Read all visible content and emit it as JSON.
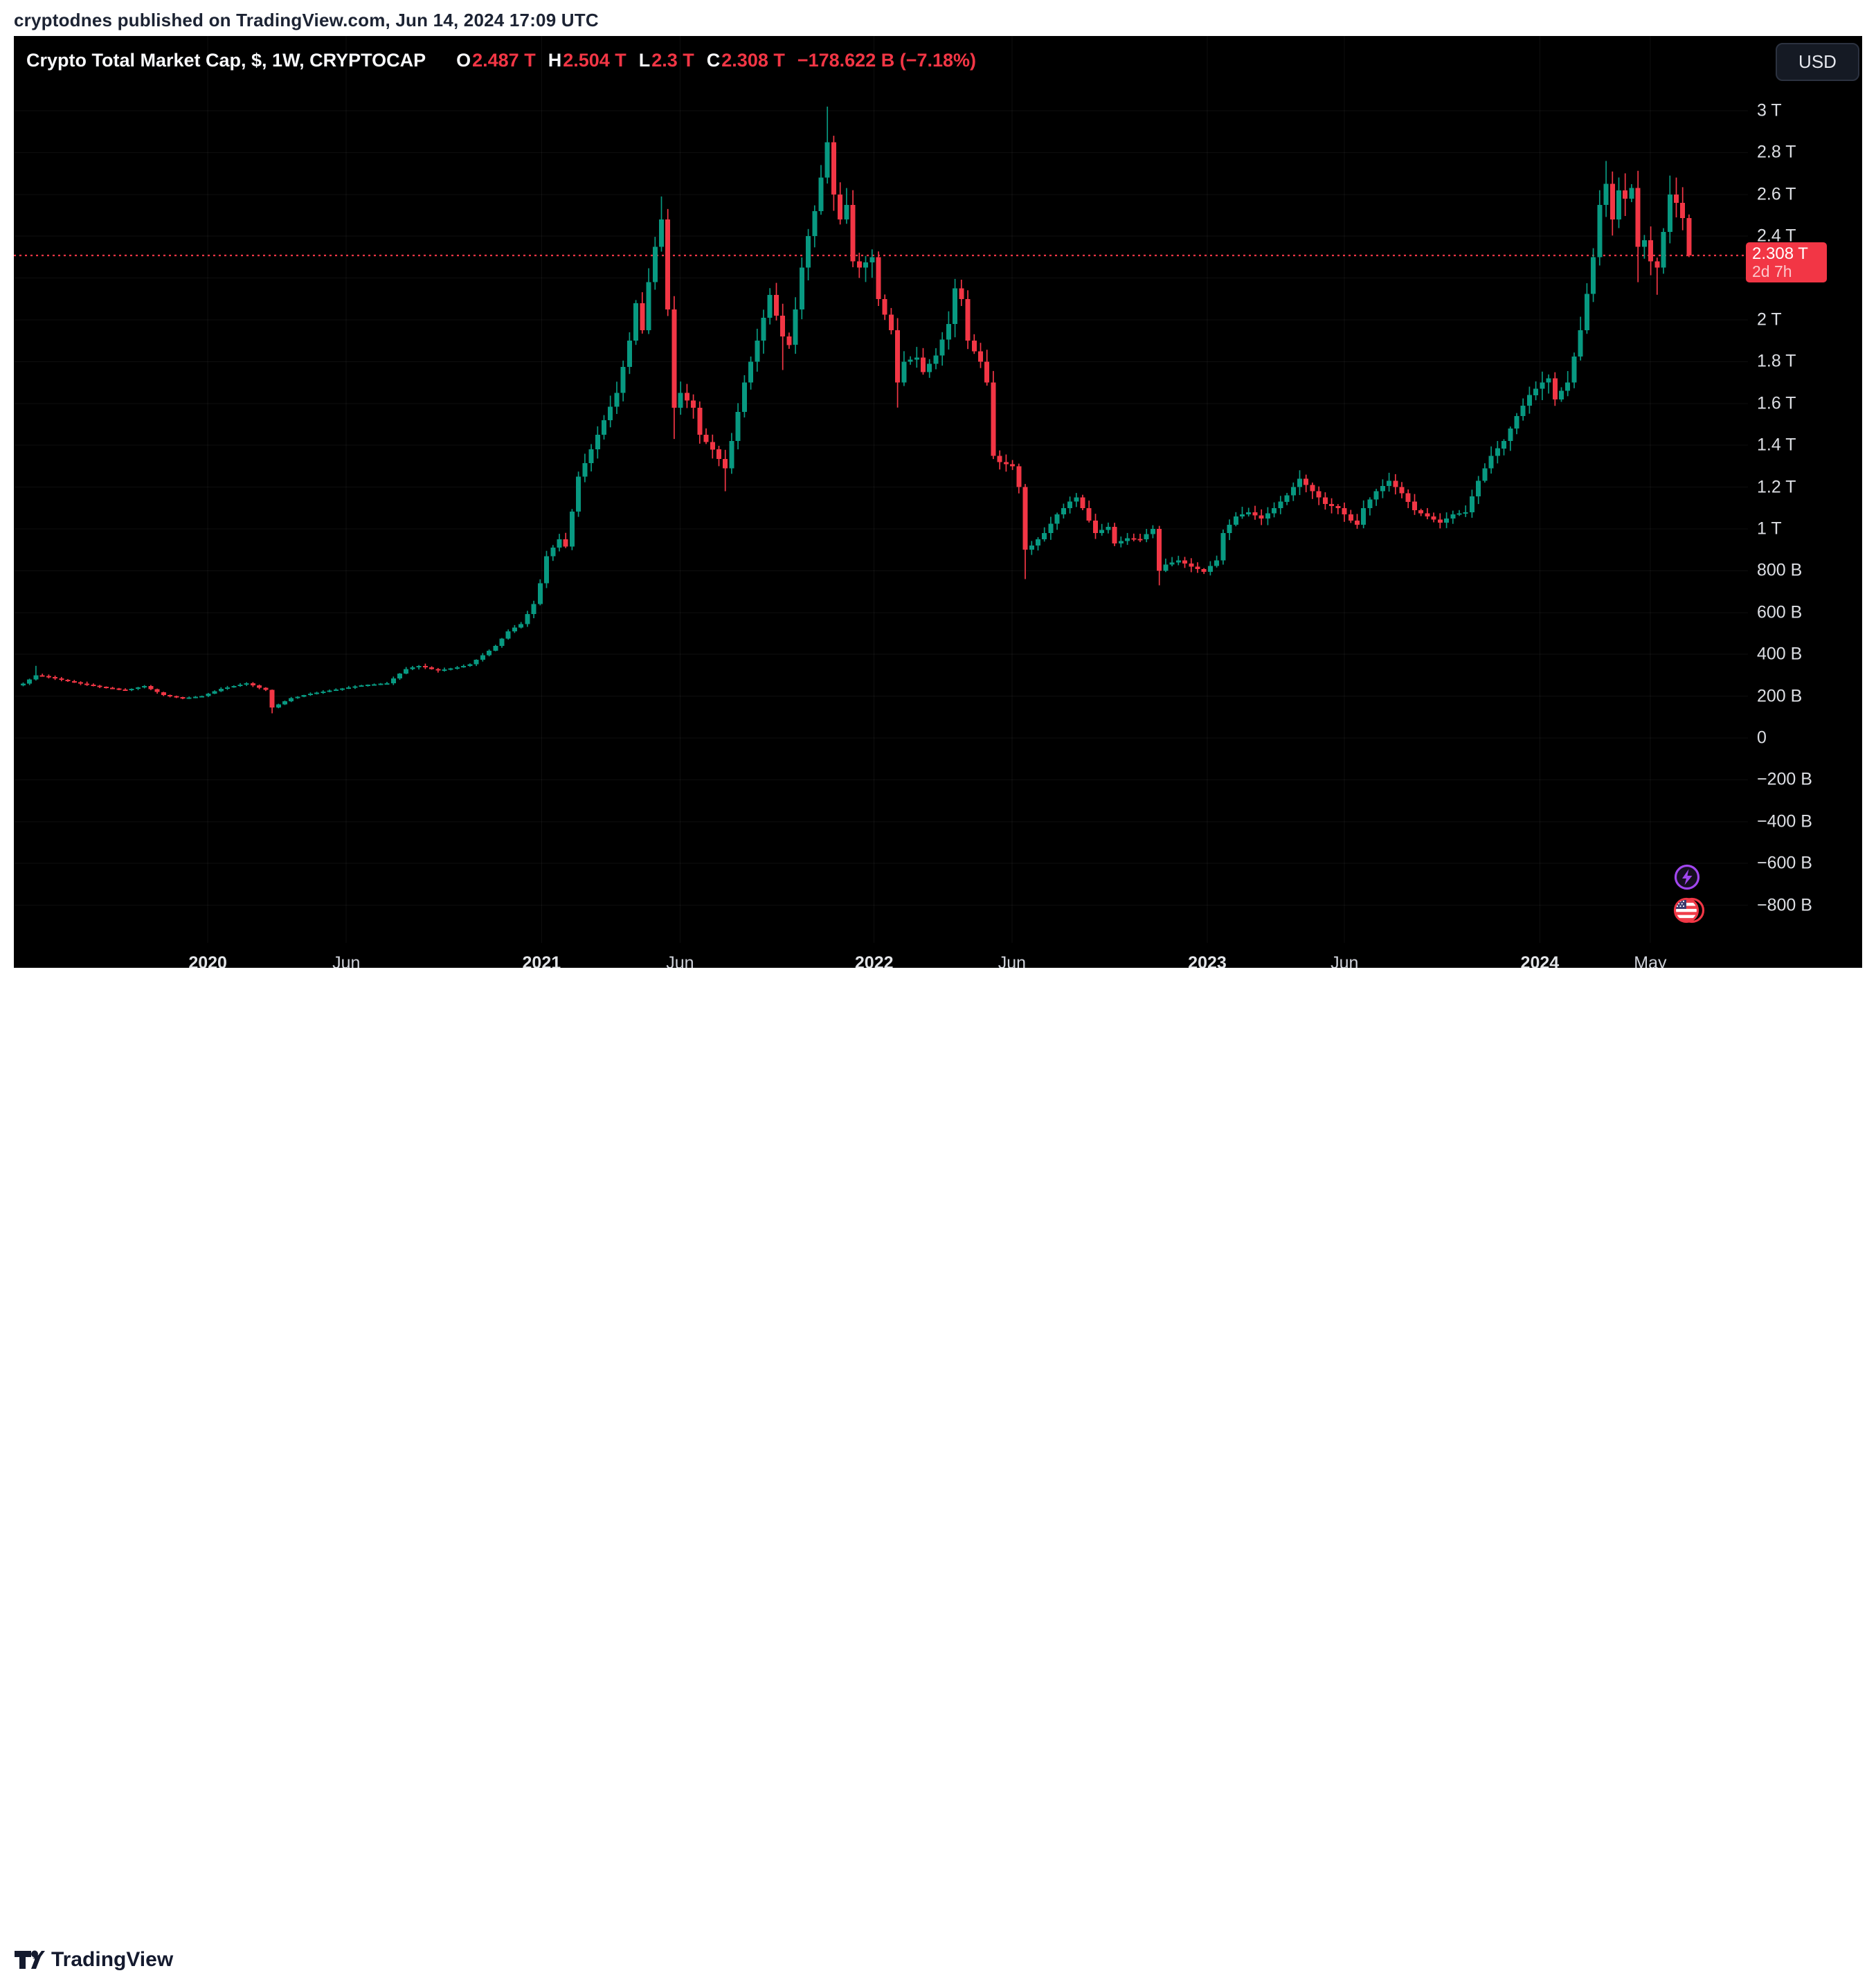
{
  "header": {
    "publisher_line": "cryptodnes published on TradingView.com, Jun 14, 2024 17:09 UTC"
  },
  "toolbar": {
    "currency_button": "USD"
  },
  "legend": {
    "title": "Crypto Total Market Cap, $, 1W, CRYPTOCAP",
    "items": [
      {
        "k": "O",
        "v": "2.487 T"
      },
      {
        "k": "H",
        "v": "2.504 T"
      },
      {
        "k": "L",
        "v": "2.3 T"
      },
      {
        "k": "C",
        "v": "2.308 T"
      }
    ],
    "change": "−178.622 B (−7.18%)"
  },
  "price_label": {
    "price": "2.308 T",
    "countdown": "2d 7h"
  },
  "footer": {
    "brand": "TradingView"
  },
  "chart_data": {
    "type": "candlestick",
    "title": "Crypto Total Market Cap, $",
    "symbol": "CRYPTOCAP",
    "timeframe": "1W",
    "currency": "USD",
    "last_ohlc_billions": {
      "open": 2487,
      "high": 2504,
      "low": 2300,
      "close": 2308,
      "change": "−178.622 B",
      "change_pct": "−7.18%"
    },
    "price_line_billions": 2308,
    "colors": {
      "up": "#089981",
      "down": "#f23645",
      "price_line": "#f23645",
      "grid": "rgba(255,255,255,0.055)",
      "background": "#000000"
    },
    "y_axis": {
      "unit_note": "values in billions USD",
      "min": -900,
      "max": 3100,
      "grid_step": 200,
      "ticks": [
        {
          "label": "3 T",
          "value": 3000
        },
        {
          "label": "2.8 T",
          "value": 2800
        },
        {
          "label": "2.6 T",
          "value": 2600
        },
        {
          "label": "2.4 T",
          "value": 2400
        },
        {
          "label": "2 T",
          "value": 2000
        },
        {
          "label": "1.8 T",
          "value": 1800
        },
        {
          "label": "1.6 T",
          "value": 1600
        },
        {
          "label": "1.4 T",
          "value": 1400
        },
        {
          "label": "1.2 T",
          "value": 1200
        },
        {
          "label": "1 T",
          "value": 1000
        },
        {
          "label": "800 B",
          "value": 800
        },
        {
          "label": "600 B",
          "value": 600
        },
        {
          "label": "400 B",
          "value": 400
        },
        {
          "label": "200 B",
          "value": 200
        },
        {
          "label": "0",
          "value": 0
        },
        {
          "label": "−200 B",
          "value": -200
        },
        {
          "label": "−400 B",
          "value": -400
        },
        {
          "label": "−600 B",
          "value": -600
        },
        {
          "label": "−800 B",
          "value": -800
        }
      ]
    },
    "x_axis": {
      "start_week_date": "2019-06-10",
      "weeks": 261,
      "ticks": [
        {
          "label": "2020",
          "week": 29.3,
          "bold": true
        },
        {
          "label": "Jun",
          "week": 51.0,
          "bold": false
        },
        {
          "label": "2021",
          "week": 81.6,
          "bold": true
        },
        {
          "label": "Jun",
          "week": 103.3,
          "bold": false
        },
        {
          "label": "2022",
          "week": 133.7,
          "bold": true
        },
        {
          "label": "Jun",
          "week": 155.3,
          "bold": false
        },
        {
          "label": "2023",
          "week": 185.9,
          "bold": true
        },
        {
          "label": "Jun",
          "week": 207.4,
          "bold": false
        },
        {
          "label": "2024",
          "week": 238.0,
          "bold": true
        },
        {
          "label": "May",
          "week": 255.3,
          "bold": false
        }
      ]
    },
    "anchors_weekly_close_billions_format": "[week_index, close, high_override|null, low_override|null, open_override?]",
    "anchors": [
      [
        0,
        260,
        null,
        null
      ],
      [
        2,
        300,
        345,
        null
      ],
      [
        4,
        292,
        null,
        null
      ],
      [
        7,
        272,
        null,
        null
      ],
      [
        10,
        255,
        null,
        null
      ],
      [
        13,
        240,
        null,
        null
      ],
      [
        16,
        228,
        null,
        null
      ],
      [
        19,
        248,
        null,
        null
      ],
      [
        22,
        205,
        null,
        null
      ],
      [
        25,
        190,
        null,
        null
      ],
      [
        28,
        200,
        null,
        null
      ],
      [
        31,
        235,
        null,
        null
      ],
      [
        35,
        262,
        null,
        null
      ],
      [
        38,
        230,
        null,
        null
      ],
      [
        39,
        145,
        null,
        118
      ],
      [
        40,
        160,
        null,
        null
      ],
      [
        42,
        190,
        null,
        null
      ],
      [
        45,
        212,
        null,
        null
      ],
      [
        49,
        232,
        null,
        null
      ],
      [
        53,
        252,
        null,
        null
      ],
      [
        57,
        262,
        null,
        null
      ],
      [
        60,
        330,
        null,
        null
      ],
      [
        62,
        345,
        null,
        null
      ],
      [
        65,
        322,
        null,
        null
      ],
      [
        68,
        338,
        null,
        null
      ],
      [
        70,
        352,
        null,
        null
      ],
      [
        72,
        395,
        null,
        null
      ],
      [
        74,
        440,
        null,
        null
      ],
      [
        76,
        510,
        null,
        null
      ],
      [
        78,
        545,
        null,
        null
      ],
      [
        80,
        640,
        null,
        null
      ],
      [
        81,
        740,
        null,
        null
      ],
      [
        82,
        870,
        null,
        null
      ],
      [
        84,
        950,
        null,
        null
      ],
      [
        85,
        915,
        null,
        null
      ],
      [
        87,
        1250,
        null,
        null
      ],
      [
        89,
        1380,
        null,
        null
      ],
      [
        91,
        1520,
        null,
        null
      ],
      [
        93,
        1650,
        null,
        null
      ],
      [
        95,
        1900,
        null,
        null
      ],
      [
        96,
        2080,
        null,
        null
      ],
      [
        97,
        1950,
        null,
        null
      ],
      [
        98,
        2180,
        null,
        null
      ],
      [
        99,
        2350,
        null,
        null
      ],
      [
        100,
        2480,
        2590,
        null
      ],
      [
        101,
        2050,
        null,
        null
      ],
      [
        102,
        1580,
        null,
        1430
      ],
      [
        103,
        1650,
        null,
        null
      ],
      [
        105,
        1580,
        null,
        null
      ],
      [
        106,
        1450,
        null,
        null
      ],
      [
        108,
        1380,
        null,
        null
      ],
      [
        110,
        1290,
        null,
        1180
      ],
      [
        111,
        1420,
        null,
        null
      ],
      [
        113,
        1700,
        null,
        null
      ],
      [
        115,
        1900,
        null,
        null
      ],
      [
        117,
        2120,
        null,
        null
      ],
      [
        118,
        2020,
        null,
        null
      ],
      [
        119,
        1920,
        null,
        1760
      ],
      [
        120,
        1880,
        null,
        null
      ],
      [
        121,
        2050,
        null,
        null
      ],
      [
        122,
        2250,
        null,
        null
      ],
      [
        123,
        2400,
        null,
        null
      ],
      [
        124,
        2520,
        null,
        null
      ],
      [
        125,
        2680,
        null,
        null
      ],
      [
        126,
        2850,
        3020,
        null
      ],
      [
        127,
        2600,
        null,
        null
      ],
      [
        128,
        2480,
        null,
        null
      ],
      [
        129,
        2550,
        null,
        null
      ],
      [
        130,
        2280,
        null,
        null
      ],
      [
        131,
        2250,
        null,
        null
      ],
      [
        133,
        2300,
        null,
        null
      ],
      [
        134,
        2100,
        null,
        null
      ],
      [
        136,
        1950,
        null,
        null
      ],
      [
        137,
        1700,
        null,
        1580
      ],
      [
        138,
        1800,
        null,
        null
      ],
      [
        140,
        1820,
        null,
        null
      ],
      [
        141,
        1750,
        null,
        null
      ],
      [
        143,
        1830,
        null,
        null
      ],
      [
        145,
        1980,
        null,
        null
      ],
      [
        146,
        2150,
        null,
        null
      ],
      [
        147,
        2100,
        null,
        null
      ],
      [
        148,
        1900,
        null,
        null
      ],
      [
        150,
        1800,
        null,
        null
      ],
      [
        151,
        1700,
        null,
        null
      ],
      [
        152,
        1350,
        null,
        null
      ],
      [
        153,
        1320,
        null,
        null
      ],
      [
        155,
        1300,
        null,
        null
      ],
      [
        156,
        1200,
        null,
        null
      ],
      [
        157,
        900,
        null,
        760
      ],
      [
        158,
        920,
        null,
        null
      ],
      [
        160,
        980,
        null,
        null
      ],
      [
        162,
        1070,
        null,
        null
      ],
      [
        164,
        1130,
        null,
        null
      ],
      [
        165,
        1150,
        null,
        null
      ],
      [
        166,
        1100,
        null,
        null
      ],
      [
        168,
        980,
        null,
        null
      ],
      [
        170,
        1010,
        null,
        null
      ],
      [
        171,
        930,
        null,
        null
      ],
      [
        173,
        955,
        null,
        null
      ],
      [
        175,
        950,
        null,
        null
      ],
      [
        177,
        1000,
        null,
        null
      ],
      [
        178,
        800,
        null,
        730
      ],
      [
        179,
        830,
        null,
        null
      ],
      [
        181,
        850,
        null,
        null
      ],
      [
        183,
        820,
        null,
        null
      ],
      [
        185,
        795,
        null,
        null
      ],
      [
        187,
        850,
        null,
        null
      ],
      [
        188,
        980,
        null,
        null
      ],
      [
        190,
        1060,
        null,
        null
      ],
      [
        192,
        1080,
        null,
        null
      ],
      [
        194,
        1050,
        null,
        null
      ],
      [
        196,
        1100,
        null,
        null
      ],
      [
        198,
        1160,
        null,
        null
      ],
      [
        200,
        1240,
        null,
        null
      ],
      [
        202,
        1180,
        null,
        null
      ],
      [
        204,
        1120,
        null,
        null
      ],
      [
        206,
        1100,
        null,
        null
      ],
      [
        208,
        1040,
        null,
        null
      ],
      [
        209,
        1020,
        null,
        null
      ],
      [
        210,
        1100,
        null,
        null
      ],
      [
        212,
        1180,
        null,
        null
      ],
      [
        214,
        1230,
        null,
        null
      ],
      [
        216,
        1170,
        null,
        null
      ],
      [
        218,
        1090,
        null,
        null
      ],
      [
        220,
        1060,
        null,
        null
      ],
      [
        222,
        1030,
        null,
        null
      ],
      [
        224,
        1070,
        null,
        null
      ],
      [
        226,
        1080,
        null,
        null
      ],
      [
        228,
        1230,
        null,
        null
      ],
      [
        230,
        1350,
        null,
        null
      ],
      [
        232,
        1420,
        null,
        null
      ],
      [
        234,
        1540,
        null,
        null
      ],
      [
        236,
        1640,
        null,
        null
      ],
      [
        238,
        1700,
        null,
        null
      ],
      [
        239,
        1720,
        null,
        null
      ],
      [
        240,
        1620,
        null,
        null
      ],
      [
        242,
        1700,
        null,
        null
      ],
      [
        244,
        1950,
        null,
        null
      ],
      [
        246,
        2300,
        null,
        null
      ],
      [
        247,
        2550,
        null,
        null
      ],
      [
        248,
        2650,
        2760,
        null
      ],
      [
        249,
        2480,
        null,
        null
      ],
      [
        250,
        2620,
        null,
        null
      ],
      [
        251,
        2580,
        null,
        null
      ],
      [
        252,
        2630,
        null,
        null
      ],
      [
        253,
        2350,
        null,
        2180
      ],
      [
        254,
        2380,
        null,
        null
      ],
      [
        255,
        2280,
        null,
        null
      ],
      [
        256,
        2250,
        null,
        2120
      ],
      [
        257,
        2420,
        null,
        null
      ],
      [
        258,
        2600,
        2690,
        null
      ],
      [
        259,
        2560,
        null,
        null
      ],
      [
        260,
        2487,
        null,
        null
      ],
      [
        261,
        2308,
        2504,
        2300,
        2487
      ]
    ]
  }
}
